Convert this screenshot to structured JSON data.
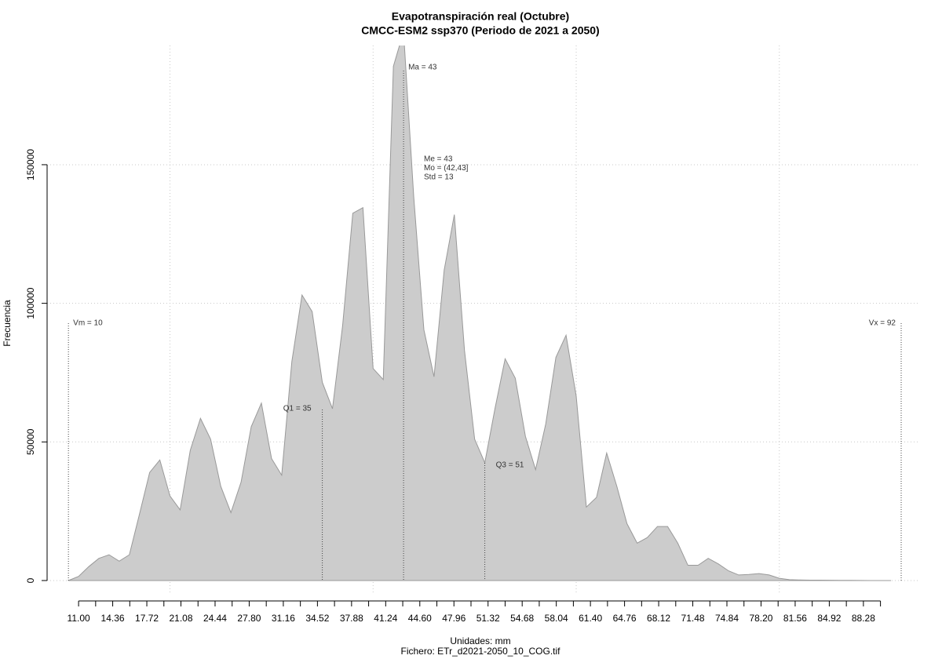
{
  "chart_data": {
    "type": "area",
    "title": "Evapotranspiración real (Octubre)",
    "subtitle": "CMCC-ESM2 ssp370 (Periodo de 2021 a 2050)",
    "x_label": "Unidades: mm",
    "x_sublabel": "Fichero: ETr_d2021-2050_10_COG.tif",
    "y_label": "Frecuencia",
    "x": [
      10,
      11,
      12,
      13,
      14,
      15,
      16,
      17,
      18,
      19,
      20,
      21,
      22,
      23,
      24,
      25,
      26,
      27,
      28,
      29,
      30,
      31,
      32,
      33,
      34,
      35,
      36,
      37,
      38,
      39,
      40,
      41,
      42,
      43,
      44,
      45,
      46,
      47,
      48,
      49,
      50,
      51,
      52,
      53,
      54,
      55,
      56,
      57,
      58,
      59,
      60,
      61,
      62,
      63,
      64,
      65,
      66,
      67,
      68,
      69,
      70,
      71,
      72,
      73,
      74,
      75,
      76,
      77,
      78,
      79,
      80,
      81,
      82,
      83,
      84,
      85,
      86,
      87,
      88,
      89,
      90,
      91
    ],
    "values": [
      0,
      1500,
      5000,
      8000,
      9300,
      7000,
      9300,
      24000,
      39000,
      43500,
      30500,
      25500,
      47000,
      58500,
      51000,
      34000,
      24500,
      35500,
      55500,
      64000,
      44000,
      38000,
      79000,
      103000,
      97000,
      71500,
      62000,
      92000,
      132500,
      134500,
      76500,
      72500,
      185500,
      198000,
      138500,
      90500,
      73500,
      112000,
      132000,
      83000,
      51000,
      42500,
      62000,
      80000,
      73000,
      52000,
      40000,
      56500,
      80500,
      88500,
      66500,
      26500,
      30000,
      46000,
      34000,
      20500,
      13500,
      15500,
      19500,
      19500,
      13500,
      5500,
      5500,
      8000,
      6000,
      3500,
      2000,
      2200,
      2500,
      2000,
      800,
      300,
      200,
      150,
      150,
      100,
      50,
      50,
      20,
      10,
      5,
      0
    ],
    "color": "#cccccc",
    "line_color": "#999999",
    "xlim": [
      7.9,
      93.7
    ],
    "ylim": [
      -5100,
      193000
    ],
    "xticks": [
      {
        "value": 11.0,
        "label": "11.00"
      },
      {
        "value": 14.36,
        "label": "14.36"
      },
      {
        "value": 17.72,
        "label": "17.72"
      },
      {
        "value": 21.08,
        "label": "21.08"
      },
      {
        "value": 24.44,
        "label": "24.44"
      },
      {
        "value": 27.8,
        "label": "27.80"
      },
      {
        "value": 31.16,
        "label": "31.16"
      },
      {
        "value": 34.52,
        "label": "34.52"
      },
      {
        "value": 37.88,
        "label": "37.88"
      },
      {
        "value": 41.24,
        "label": "41.24"
      },
      {
        "value": 44.6,
        "label": "44.60"
      },
      {
        "value": 47.96,
        "label": "47.96"
      },
      {
        "value": 51.32,
        "label": "51.32"
      },
      {
        "value": 54.68,
        "label": "54.68"
      },
      {
        "value": 58.04,
        "label": "58.04"
      },
      {
        "value": 61.4,
        "label": "61.40"
      },
      {
        "value": 64.76,
        "label": "64.76"
      },
      {
        "value": 68.12,
        "label": "68.12"
      },
      {
        "value": 71.48,
        "label": "71.48"
      },
      {
        "value": 74.84,
        "label": "74.84"
      },
      {
        "value": 78.2,
        "label": "78.20"
      },
      {
        "value": 81.56,
        "label": "81.56"
      },
      {
        "value": 84.92,
        "label": "84.92"
      },
      {
        "value": 88.28,
        "label": "88.28"
      }
    ],
    "xminor": [
      12.68,
      16.04,
      19.4,
      22.76,
      26.12,
      29.48,
      32.84,
      36.2,
      39.56,
      42.92,
      46.28,
      49.64,
      53.0,
      56.36,
      59.72,
      63.08,
      66.44,
      69.8,
      73.16,
      76.52,
      79.88,
      83.24,
      86.6,
      89.96
    ],
    "xgrid": [
      20,
      40,
      60,
      80
    ],
    "yticks": [
      0,
      50000,
      100000,
      150000
    ],
    "grid": true,
    "markers": [
      {
        "label": "Vm = 10",
        "value": 10
      },
      {
        "label": "Q1 = 35",
        "value": 35
      },
      {
        "label": "Ma = 43",
        "value": 43
      },
      {
        "label": "Q3 = 51",
        "value": 51
      },
      {
        "label": "Vx = 92",
        "value": 92
      }
    ],
    "stats": [
      "Me = 43",
      "Mo = (42,43]",
      "Std = 13"
    ]
  }
}
